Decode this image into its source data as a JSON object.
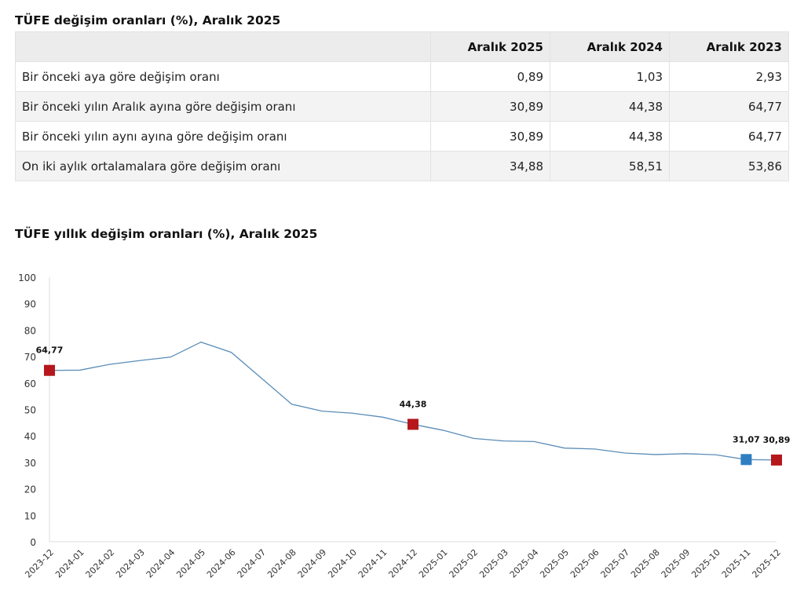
{
  "table": {
    "title": "TÜFE değişim oranları (%), Aralık 2025",
    "headers": [
      "",
      "Aralık 2025",
      "Aralık 2024",
      "Aralık 2023"
    ],
    "rows": [
      {
        "label": "Bir önceki aya göre değişim oranı",
        "values": [
          "0,89",
          "1,03",
          "2,93"
        ]
      },
      {
        "label": "Bir önceki yılın Aralık ayına göre değişim oranı",
        "values": [
          "30,89",
          "44,38",
          "64,77"
        ]
      },
      {
        "label": "Bir önceki yılın aynı ayına göre değişim oranı",
        "values": [
          "30,89",
          "44,38",
          "64,77"
        ]
      },
      {
        "label": "On iki aylık ortalamalara göre değişim oranı",
        "values": [
          "34,88",
          "58,51",
          "53,86"
        ]
      }
    ]
  },
  "chart_data": {
    "type": "line",
    "title": "TÜFE yıllık değişim oranları (%), Aralık 2025",
    "x": [
      "2023-12",
      "2024-01",
      "2024-02",
      "2024-03",
      "2024-04",
      "2024-05",
      "2024-06",
      "2024-07",
      "2024-08",
      "2024-09",
      "2024-10",
      "2024-11",
      "2024-12",
      "2025-01",
      "2025-02",
      "2025-03",
      "2025-04",
      "2025-05",
      "2025-06",
      "2025-07",
      "2025-08",
      "2025-09",
      "2025-10",
      "2025-11",
      "2025-12"
    ],
    "values": [
      64.77,
      64.86,
      67.07,
      68.5,
      69.8,
      75.45,
      71.6,
      61.78,
      51.97,
      49.38,
      48.58,
      47.09,
      44.38,
      42.12,
      39.05,
      38.1,
      37.86,
      35.41,
      35.05,
      33.52,
      32.95,
      33.29,
      32.87,
      31.07,
      30.89
    ],
    "ylim": [
      0,
      100
    ],
    "yticks": [
      0,
      10,
      20,
      30,
      40,
      50,
      60,
      70,
      80,
      90,
      100
    ],
    "grid": false,
    "line_color": "#5b8db8",
    "markers": [
      {
        "x": "2023-12",
        "label": "64,77",
        "color": "#b5171d"
      },
      {
        "x": "2024-12",
        "label": "44,38",
        "color": "#b5171d"
      },
      {
        "x": "2025-11",
        "label": "31,07",
        "color": "#2f7ec1"
      },
      {
        "x": "2025-12",
        "label": "30,89",
        "color": "#b5171d"
      }
    ]
  }
}
